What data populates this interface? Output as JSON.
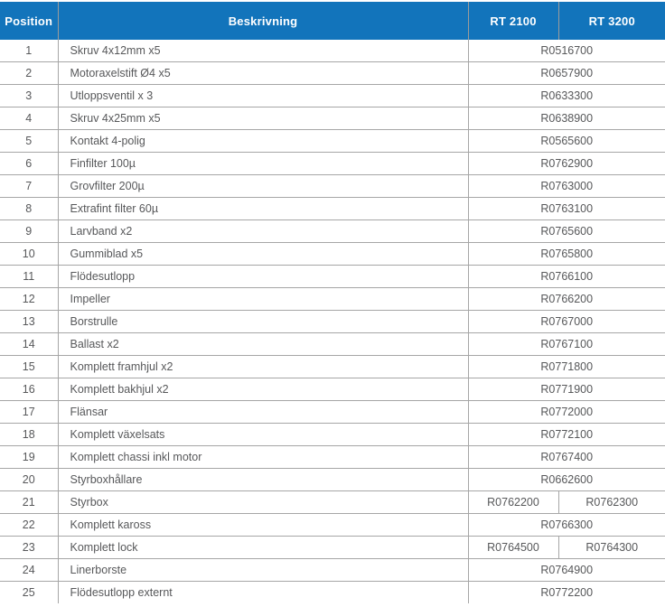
{
  "header": {
    "position": "Position",
    "description": "Beskrivning",
    "rt2100": "RT 2100",
    "rt3200": "RT 3200"
  },
  "colors": {
    "header_bg": "#1274bb",
    "header_text": "#ffffff",
    "body_text": "#57585a",
    "border": "#a6a6a6"
  },
  "table": {
    "rows": [
      {
        "position": "1",
        "description": "Skruv 4x12mm x5",
        "part_numbers": [
          "R0516700"
        ]
      },
      {
        "position": "2",
        "description": "Motoraxelstift Ø4 x5",
        "part_numbers": [
          "R0657900"
        ]
      },
      {
        "position": "3",
        "description": "Utloppsventil x 3",
        "part_numbers": [
          "R0633300"
        ]
      },
      {
        "position": "4",
        "description": "Skruv 4x25mm x5",
        "part_numbers": [
          "R0638900"
        ]
      },
      {
        "position": "5",
        "description": "Kontakt 4-polig",
        "part_numbers": [
          "R0565600"
        ]
      },
      {
        "position": "6",
        "description": "Finfilter 100µ",
        "part_numbers": [
          "R0762900"
        ]
      },
      {
        "position": "7",
        "description": "Grovfilter 200µ",
        "part_numbers": [
          "R0763000"
        ]
      },
      {
        "position": "8",
        "description": "Extrafint filter 60µ",
        "part_numbers": [
          "R0763100"
        ]
      },
      {
        "position": "9",
        "description": "Larvband x2",
        "part_numbers": [
          "R0765600"
        ]
      },
      {
        "position": "10",
        "description": "Gummiblad x5",
        "part_numbers": [
          "R0765800"
        ]
      },
      {
        "position": "11",
        "description": "Flödesutlopp",
        "part_numbers": [
          "R0766100"
        ]
      },
      {
        "position": "12",
        "description": "Impeller",
        "part_numbers": [
          "R0766200"
        ]
      },
      {
        "position": "13",
        "description": "Borstrulle",
        "part_numbers": [
          "R0767000"
        ]
      },
      {
        "position": "14",
        "description": "Ballast x2",
        "part_numbers": [
          "R0767100"
        ]
      },
      {
        "position": "15",
        "description": "Komplett framhjul x2",
        "part_numbers": [
          "R0771800"
        ]
      },
      {
        "position": "16",
        "description": "Komplett bakhjul x2",
        "part_numbers": [
          "R0771900"
        ]
      },
      {
        "position": "17",
        "description": "Flänsar",
        "part_numbers": [
          "R0772000"
        ]
      },
      {
        "position": "18",
        "description": "Komplett växelsats",
        "part_numbers": [
          "R0772100"
        ]
      },
      {
        "position": "19",
        "description": "Komplett chassi inkl motor",
        "part_numbers": [
          "R0767400"
        ]
      },
      {
        "position": "20",
        "description": "Styrboxhållare",
        "part_numbers": [
          "R0662600"
        ]
      },
      {
        "position": "21",
        "description": "Styrbox",
        "part_numbers": [
          "R0762200",
          "R0762300"
        ]
      },
      {
        "position": "22",
        "description": "Komplett kaross",
        "part_numbers": [
          "R0766300"
        ]
      },
      {
        "position": "23",
        "description": "Komplett lock",
        "part_numbers": [
          "R0764500",
          "R0764300"
        ]
      },
      {
        "position": "24",
        "description": "Linerborste",
        "part_numbers": [
          "R0764900"
        ]
      },
      {
        "position": "25",
        "description": "Flödesutlopp externt",
        "part_numbers": [
          "R0772200"
        ]
      }
    ]
  }
}
